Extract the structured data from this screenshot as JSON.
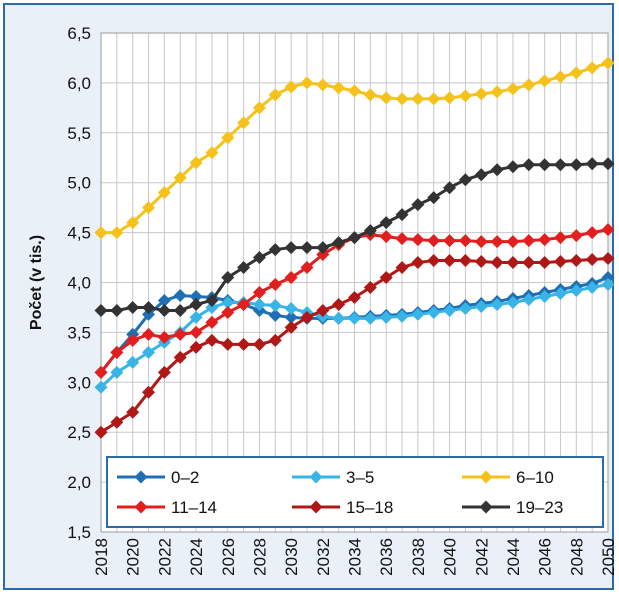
{
  "chart_data": {
    "type": "line",
    "ylabel": "Počet (v tis.)",
    "xlabel": "",
    "title": "",
    "ylim": [
      1.5,
      6.5
    ],
    "yticks": [
      "1,5",
      "2,0",
      "2,5",
      "3,0",
      "3,5",
      "4,0",
      "4,5",
      "5,0",
      "5,5",
      "6,0",
      "6,5"
    ],
    "ytick_values": [
      1.5,
      2.0,
      2.5,
      3.0,
      3.5,
      4.0,
      4.5,
      5.0,
      5.5,
      6.0,
      6.5
    ],
    "xticks": [
      "2018",
      "2020",
      "2022",
      "2024",
      "2026",
      "2028",
      "2030",
      "2032",
      "2034",
      "2036",
      "2038",
      "2040",
      "2042",
      "2044",
      "2046",
      "2048",
      "2050"
    ],
    "grid": true,
    "legend_position": "bottom",
    "background": "#ffffff",
    "x": [
      2018,
      2019,
      2020,
      2021,
      2022,
      2023,
      2024,
      2025,
      2026,
      2027,
      2028,
      2029,
      2030,
      2031,
      2032,
      2033,
      2034,
      2035,
      2036,
      2037,
      2038,
      2039,
      2040,
      2041,
      2042,
      2043,
      2044,
      2045,
      2046,
      2047,
      2048,
      2049,
      2050
    ],
    "series": [
      {
        "name": "0–2",
        "color": "#1f6fb4",
        "values": [
          3.1,
          3.3,
          3.48,
          3.68,
          3.82,
          3.87,
          3.86,
          3.85,
          3.82,
          3.78,
          3.72,
          3.67,
          3.65,
          3.64,
          3.64,
          3.64,
          3.65,
          3.66,
          3.67,
          3.68,
          3.7,
          3.72,
          3.74,
          3.77,
          3.79,
          3.81,
          3.84,
          3.87,
          3.9,
          3.93,
          3.96,
          3.99,
          4.05
        ]
      },
      {
        "name": "3–5",
        "color": "#39b4e6",
        "values": [
          2.95,
          3.1,
          3.2,
          3.3,
          3.4,
          3.5,
          3.65,
          3.75,
          3.8,
          3.8,
          3.78,
          3.77,
          3.74,
          3.7,
          3.66,
          3.64,
          3.64,
          3.64,
          3.65,
          3.66,
          3.68,
          3.7,
          3.72,
          3.74,
          3.76,
          3.78,
          3.8,
          3.83,
          3.86,
          3.89,
          3.92,
          3.95,
          3.98
        ]
      },
      {
        "name": "6–10",
        "color": "#f5c11b",
        "values": [
          4.5,
          4.5,
          4.6,
          4.75,
          4.9,
          5.05,
          5.2,
          5.3,
          5.45,
          5.6,
          5.75,
          5.88,
          5.96,
          6.0,
          5.98,
          5.95,
          5.92,
          5.88,
          5.85,
          5.84,
          5.84,
          5.84,
          5.85,
          5.87,
          5.89,
          5.91,
          5.94,
          5.98,
          6.02,
          6.06,
          6.1,
          6.15,
          6.2
        ]
      },
      {
        "name": "11–14",
        "color": "#e31e1e",
        "values": [
          3.1,
          3.3,
          3.42,
          3.48,
          3.45,
          3.48,
          3.5,
          3.6,
          3.7,
          3.78,
          3.9,
          3.98,
          4.05,
          4.15,
          4.28,
          4.38,
          4.45,
          4.48,
          4.46,
          4.44,
          4.43,
          4.42,
          4.42,
          4.42,
          4.41,
          4.41,
          4.41,
          4.42,
          4.43,
          4.45,
          4.47,
          4.5,
          4.53
        ]
      },
      {
        "name": "15–18",
        "color": "#b01818",
        "values": [
          2.5,
          2.6,
          2.7,
          2.9,
          3.1,
          3.25,
          3.35,
          3.42,
          3.38,
          3.38,
          3.38,
          3.42,
          3.55,
          3.65,
          3.72,
          3.78,
          3.85,
          3.95,
          4.05,
          4.15,
          4.2,
          4.22,
          4.22,
          4.22,
          4.21,
          4.2,
          4.2,
          4.2,
          4.2,
          4.21,
          4.22,
          4.23,
          4.24
        ]
      },
      {
        "name": "19–23",
        "color": "#333333",
        "values": [
          3.72,
          3.72,
          3.75,
          3.75,
          3.72,
          3.72,
          3.78,
          3.82,
          4.05,
          4.15,
          4.25,
          4.33,
          4.35,
          4.35,
          4.35,
          4.4,
          4.45,
          4.52,
          4.6,
          4.68,
          4.78,
          4.85,
          4.95,
          5.03,
          5.08,
          5.13,
          5.16,
          5.18,
          5.18,
          5.18,
          5.18,
          5.19,
          5.19
        ]
      }
    ]
  }
}
